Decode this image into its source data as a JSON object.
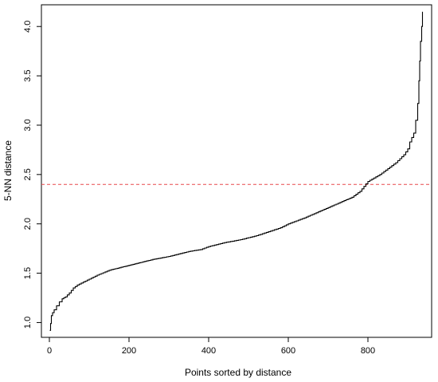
{
  "chart_data": {
    "type": "line",
    "title": "",
    "xlabel": "Points sorted by distance",
    "ylabel": "5-NN distance",
    "xlim": [
      -20,
      960
    ],
    "ylim": [
      0.85,
      4.22
    ],
    "x_ticks": [
      0,
      200,
      400,
      600,
      800
    ],
    "x_tick_labels": [
      "0",
      "200",
      "400",
      "600",
      "800"
    ],
    "y_ticks": [
      1.0,
      1.5,
      2.0,
      2.5,
      3.0,
      3.5,
      4.0
    ],
    "y_tick_labels": [
      "1.0",
      "1.5",
      "2.0",
      "2.5",
      "3.0",
      "3.5",
      "4.0"
    ],
    "grid": false,
    "series": [
      {
        "style": "solid",
        "color": "#000000",
        "x": [
          1,
          3,
          5,
          8,
          12,
          18,
          25,
          32,
          40,
          50,
          60,
          70,
          80,
          100,
          120,
          150,
          180,
          200,
          230,
          260,
          300,
          330,
          350,
          380,
          400,
          440,
          480,
          520,
          550,
          580,
          600,
          640,
          680,
          720,
          760,
          780,
          800,
          830,
          850,
          870,
          890,
          900,
          905,
          915,
          920,
          925,
          928,
          930,
          932,
          935,
          937
        ],
        "y": [
          0.92,
          0.99,
          1.07,
          1.1,
          1.13,
          1.17,
          1.21,
          1.24,
          1.26,
          1.3,
          1.35,
          1.38,
          1.4,
          1.44,
          1.48,
          1.53,
          1.56,
          1.58,
          1.61,
          1.64,
          1.67,
          1.7,
          1.72,
          1.74,
          1.77,
          1.81,
          1.84,
          1.88,
          1.92,
          1.96,
          2.0,
          2.06,
          2.13,
          2.2,
          2.27,
          2.33,
          2.43,
          2.5,
          2.56,
          2.62,
          2.7,
          2.76,
          2.83,
          2.92,
          3.05,
          3.22,
          3.45,
          3.65,
          3.85,
          4.0,
          4.15
        ]
      }
    ],
    "reference_lines": [
      {
        "orientation": "horizontal",
        "y": 2.4,
        "style": "dashed",
        "color": "#e8484c"
      }
    ]
  }
}
